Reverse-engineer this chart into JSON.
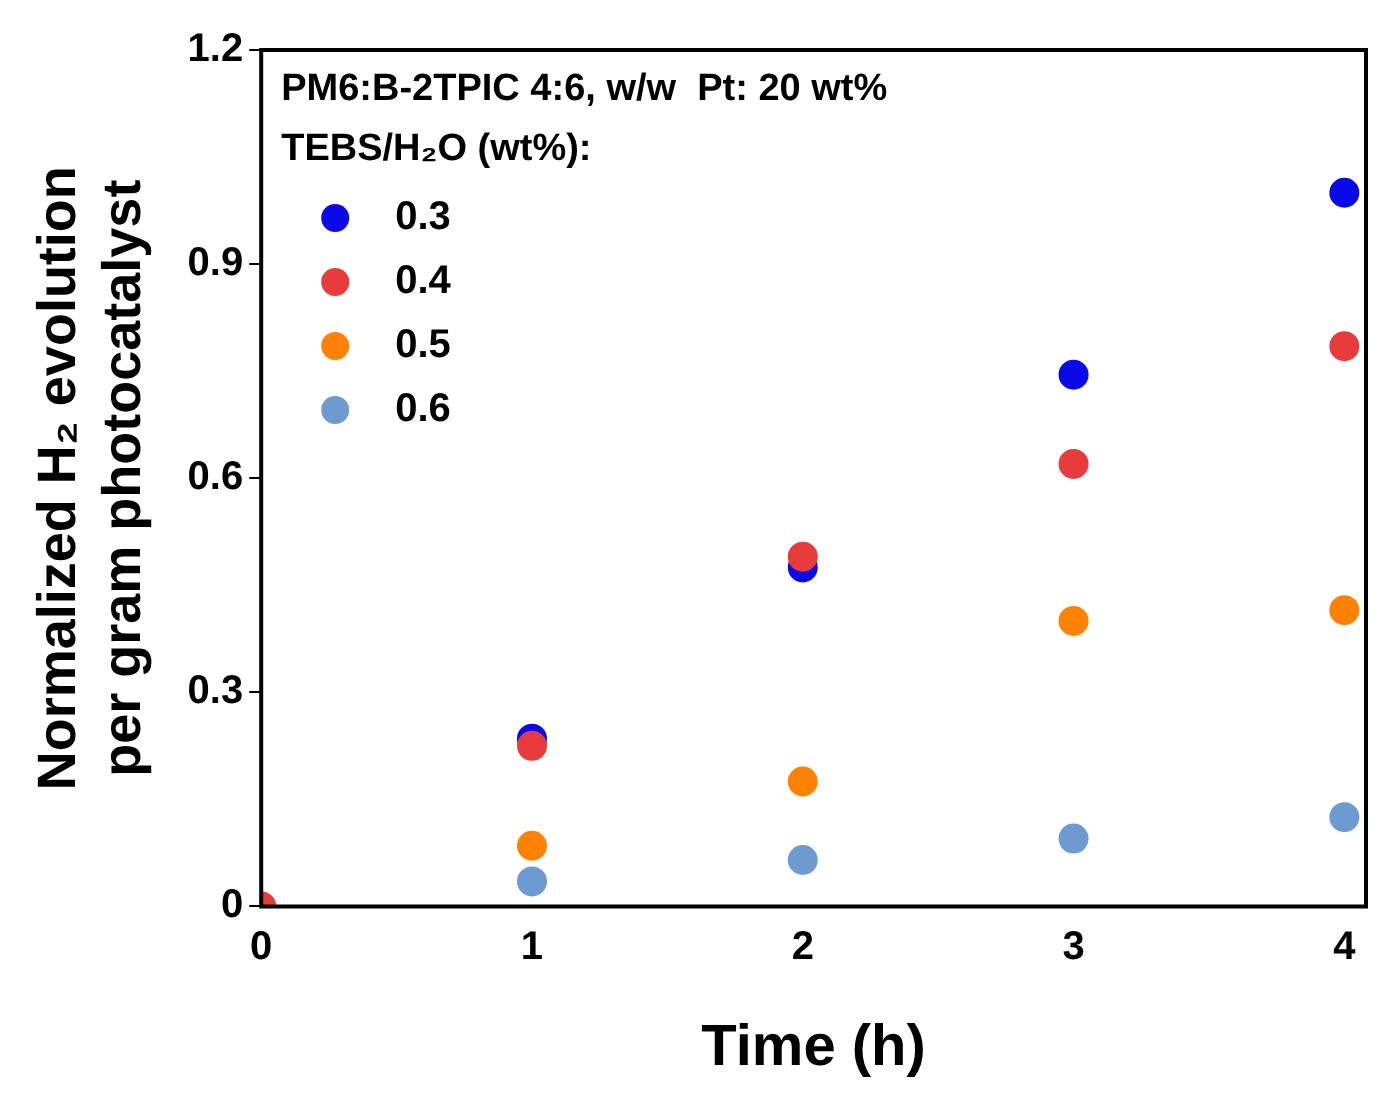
{
  "chart_data": {
    "type": "scatter",
    "xlabel": "Time (h)",
    "ylabel": "Normalized H₂ evolution\nper gram photocatalyst",
    "annotations": [
      "PM6:B-2TPIC 4:6, w/w  Pt: 20 wt%"
    ],
    "legend_title": "TEBS/H₂O (wt%):",
    "legend": "top left",
    "marker": "circle",
    "grid": false,
    "x": [
      0,
      1,
      2,
      3,
      4
    ],
    "xlim": [
      0,
      4.08
    ],
    "xticks": [
      0,
      1,
      2,
      3,
      4
    ],
    "ylim": [
      0,
      1.2
    ],
    "yticks": [
      0,
      {
        "value": 0.3,
        "label": "0.3"
      },
      {
        "value": 0.6,
        "label": "0.6"
      },
      {
        "value": 0.9,
        "label": "0.9"
      },
      {
        "value": 1.2,
        "label": "1.2"
      }
    ],
    "series": [
      {
        "name": "0.3",
        "color": "#0a0ae8",
        "values": [
          null,
          0.235,
          0.475,
          0.745,
          1.0
        ]
      },
      {
        "name": "0.4",
        "color": "#e83c3c",
        "values": [
          0,
          0.225,
          0.49,
          0.62,
          0.785
        ]
      },
      {
        "name": "0.5",
        "color": "#ff8205",
        "values": [
          null,
          0.085,
          0.175,
          0.4,
          0.415
        ]
      },
      {
        "name": "0.6",
        "color": "#6d9bd1",
        "values": [
          null,
          0.035,
          0.065,
          0.095,
          0.125
        ]
      }
    ]
  }
}
